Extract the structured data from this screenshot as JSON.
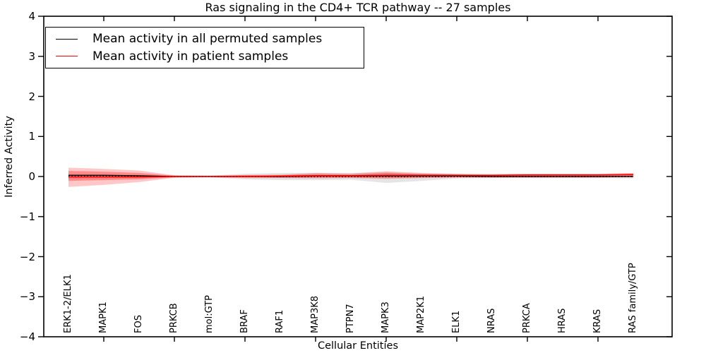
{
  "figure": {
    "background": "#ffffff"
  },
  "chart_data": {
    "type": "line",
    "title": "Ras signaling in the CD4+ TCR pathway -- 27 samples",
    "xlabel": "Cellular Entities",
    "ylabel": "Inferred Activity",
    "ylim": [
      -4,
      4
    ],
    "grid": false,
    "y_ticks": [
      {
        "value": 4,
        "label": "4"
      },
      {
        "value": 3,
        "label": "3"
      },
      {
        "value": 2,
        "label": "2"
      },
      {
        "value": 1,
        "label": "1"
      },
      {
        "value": 0,
        "label": "0"
      },
      {
        "value": -1,
        "label": "−1"
      },
      {
        "value": -2,
        "label": "−2"
      },
      {
        "value": -3,
        "label": "−3"
      },
      {
        "value": -4,
        "label": "−4"
      }
    ],
    "categories": [
      "ERK1-2/ELK1",
      "MAPK1",
      "FOS",
      "PRKCB",
      "mol:GTP",
      "BRAF",
      "RAF1",
      "MAP3K8",
      "PTPN7",
      "MAPK3",
      "MAP2K1",
      "ELK1",
      "NRAS",
      "PRKCA",
      "HRAS",
      "KRAS",
      "RAS family/GTP"
    ],
    "bands": [
      {
        "name": "permuted-range",
        "color": "rgba(0,0,0,0.10)",
        "upper": [
          0.06,
          0.05,
          0.04,
          0.02,
          0.02,
          0.07,
          0.09,
          0.09,
          0.08,
          0.11,
          0.08,
          0.05,
          0.04,
          0.04,
          0.04,
          0.04,
          0.05
        ],
        "lower": [
          -0.06,
          -0.05,
          -0.04,
          -0.02,
          -0.02,
          -0.07,
          -0.09,
          -0.09,
          -0.08,
          -0.16,
          -0.11,
          -0.05,
          -0.04,
          -0.04,
          -0.04,
          -0.04,
          -0.05
        ]
      },
      {
        "name": "patient-range-outer",
        "color": "rgba(255,0,0,0.22)",
        "upper": [
          0.22,
          0.19,
          0.15,
          0.03,
          0.02,
          0.04,
          0.05,
          0.09,
          0.08,
          0.13,
          0.09,
          0.07,
          0.06,
          0.07,
          0.07,
          0.07,
          0.09
        ],
        "lower": [
          -0.26,
          -0.21,
          -0.14,
          -0.03,
          -0.02,
          -0.04,
          -0.04,
          -0.05,
          -0.04,
          -0.06,
          -0.04,
          -0.03,
          -0.03,
          -0.03,
          -0.03,
          -0.03,
          -0.02
        ]
      },
      {
        "name": "patient-range-inner",
        "color": "rgba(255,0,0,0.30)",
        "upper": [
          0.14,
          0.12,
          0.09,
          0.02,
          0.01,
          0.03,
          0.03,
          0.06,
          0.05,
          0.09,
          0.06,
          0.05,
          0.04,
          0.05,
          0.05,
          0.05,
          0.07
        ],
        "lower": [
          -0.11,
          -0.09,
          -0.07,
          -0.02,
          -0.01,
          -0.02,
          -0.03,
          -0.03,
          -0.03,
          -0.04,
          -0.03,
          -0.02,
          -0.02,
          -0.02,
          -0.02,
          -0.02,
          -0.01
        ]
      }
    ],
    "series": [
      {
        "name": "Mean activity in all permuted samples",
        "color": "#000000",
        "style": "solid",
        "width": 1.3,
        "values": [
          0.03,
          0.03,
          0.02,
          0.0,
          0.0,
          0.0,
          0.0,
          0.01,
          0.01,
          0.01,
          0.01,
          0.01,
          0.0,
          0.0,
          0.0,
          0.0,
          0.0
        ]
      },
      {
        "name": "dotted zero reference",
        "color": "#000000",
        "style": "dotted",
        "width": 1.7,
        "values": [
          0,
          0,
          0,
          0,
          0,
          0,
          0,
          0,
          0,
          0,
          0,
          0,
          0,
          0,
          0,
          0,
          0
        ]
      },
      {
        "name": "Mean activity in patient samples",
        "color": "#ff0000",
        "style": "solid",
        "width": 1.5,
        "values": [
          -0.01,
          -0.01,
          -0.01,
          0.0,
          0.0,
          0.0,
          0.01,
          0.02,
          0.02,
          0.03,
          0.03,
          0.03,
          0.03,
          0.04,
          0.04,
          0.04,
          0.05
        ]
      }
    ],
    "legend": {
      "position": "upper left",
      "entries": [
        {
          "label": "Mean activity in all permuted samples",
          "color": "#000000"
        },
        {
          "label": "Mean activity in patient samples",
          "color": "#ff0000"
        }
      ]
    }
  }
}
